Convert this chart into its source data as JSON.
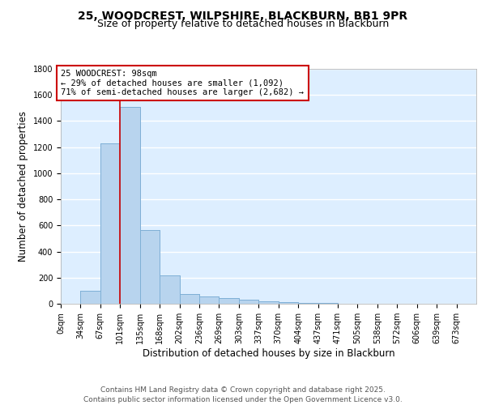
{
  "title1": "25, WOODCREST, WILPSHIRE, BLACKBURN, BB1 9PR",
  "title2": "Size of property relative to detached houses in Blackburn",
  "xlabel": "Distribution of detached houses by size in Blackburn",
  "ylabel": "Number of detached properties",
  "bar_color": "#b8d4ee",
  "bar_edge_color": "#7aadd4",
  "background_color": "#ddeeff",
  "grid_color": "#ffffff",
  "annotation_box_color": "#cc0000",
  "annotation_line_color": "#cc0000",
  "footer_text": "Contains HM Land Registry data © Crown copyright and database right 2025.\nContains public sector information licensed under the Open Government Licence v3.0.",
  "bin_labels": [
    "0sqm",
    "34sqm",
    "67sqm",
    "101sqm",
    "135sqm",
    "168sqm",
    "202sqm",
    "236sqm",
    "269sqm",
    "303sqm",
    "337sqm",
    "370sqm",
    "404sqm",
    "437sqm",
    "471sqm",
    "505sqm",
    "538sqm",
    "572sqm",
    "606sqm",
    "639sqm",
    "673sqm"
  ],
  "bin_values": [
    0,
    100,
    1230,
    1510,
    565,
    215,
    75,
    55,
    45,
    30,
    20,
    10,
    5,
    5,
    3,
    2,
    1,
    1,
    1,
    0,
    0
  ],
  "property_label": "25 WOODCREST: 98sqm",
  "annotation_line1": "← 29% of detached houses are smaller (1,092)",
  "annotation_line2": "71% of semi-detached houses are larger (2,682) →",
  "red_line_bin": 2.97,
  "ylim": [
    0,
    1800
  ],
  "yticks": [
    0,
    200,
    400,
    600,
    800,
    1000,
    1200,
    1400,
    1600,
    1800
  ],
  "bin_width": 33,
  "n_bins": 21,
  "title_fontsize": 10,
  "subtitle_fontsize": 9,
  "axis_label_fontsize": 8.5,
  "tick_fontsize": 7,
  "footer_fontsize": 6.5,
  "annotation_fontsize": 7.5
}
